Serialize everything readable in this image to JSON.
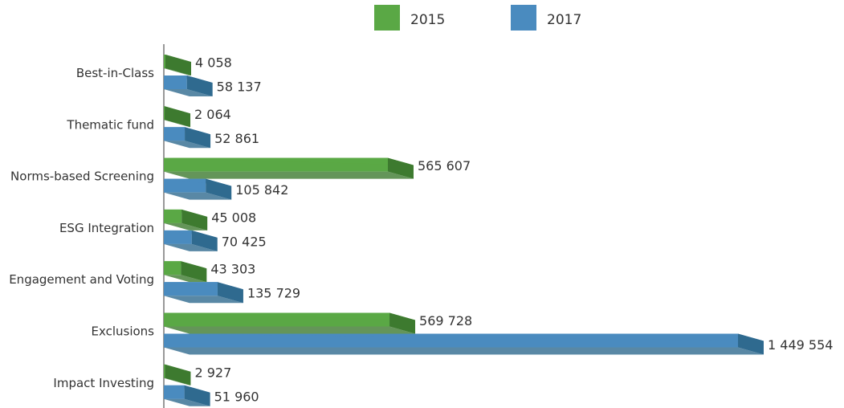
{
  "chart_data": {
    "type": "bar",
    "orientation": "horizontal",
    "style": "3d",
    "categories": [
      "Best-in-Class",
      "Thematic fund",
      "Norms-based Screening",
      "ESG Integration",
      "Engagement and Voting",
      "Exclusions",
      "Impact Investing"
    ],
    "series": [
      {
        "name": "2015",
        "color": "#5aa845",
        "side_color": "#3d7a2f",
        "values": [
          4058,
          2064,
          565607,
          45008,
          43303,
          569728,
          2927
        ],
        "labels": [
          "4 058",
          "2 064",
          "565 607",
          "45 008",
          "43 303",
          "569 728",
          "2 927"
        ]
      },
      {
        "name": "2017",
        "color": "#4a8bbf",
        "side_color": "#2f6a8f",
        "values": [
          58137,
          52861,
          105842,
          70425,
          135729,
          1449554,
          51960
        ],
        "labels": [
          "58 137",
          "52 861",
          "105 842",
          "70 425",
          "135 729",
          "1 449 554",
          "51 960"
        ]
      }
    ],
    "legend_position": "top",
    "grid": false
  }
}
